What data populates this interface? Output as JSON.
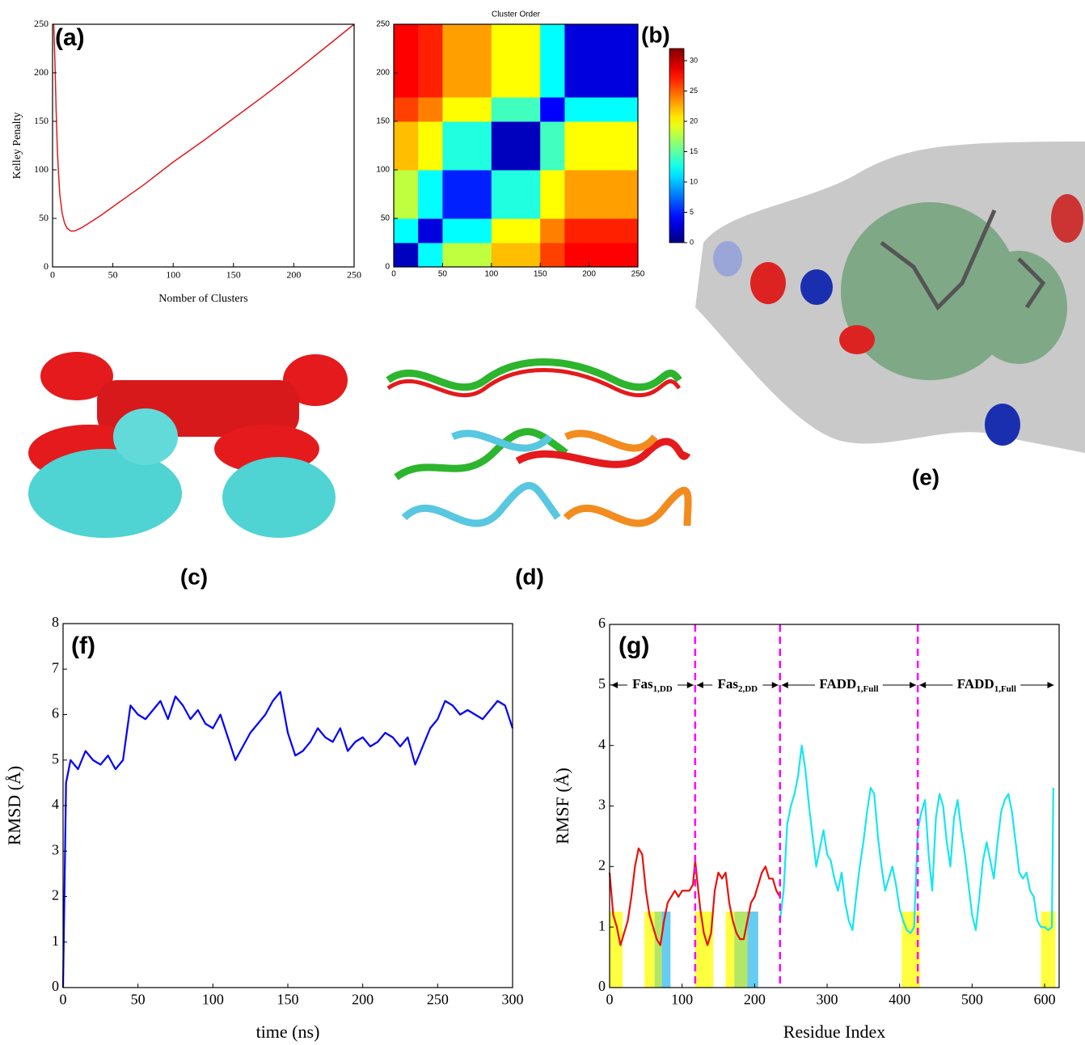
{
  "chart_data": [
    {
      "type": "line",
      "annotation": "(a)",
      "x_label": "Nomber of Clusters",
      "y_label": "Kelley Penalty",
      "x": [
        1,
        2,
        3,
        4,
        5,
        6,
        8,
        10,
        12,
        15,
        18,
        20,
        25,
        30,
        40,
        50,
        75,
        100,
        125,
        150,
        175,
        200,
        225,
        250
      ],
      "series": [
        {
          "color": "#e0191c",
          "values": [
            250,
            210,
            160,
            120,
            95,
            75,
            55,
            45,
            40,
            37,
            37,
            38,
            41,
            45,
            53,
            62,
            84,
            108,
            130,
            153,
            176,
            200,
            225,
            250
          ]
        }
      ],
      "xlim": [
        0,
        250
      ],
      "ylim": [
        0,
        250
      ],
      "xticks": [
        0,
        50,
        100,
        150,
        200,
        250
      ],
      "yticks": [
        0,
        50,
        100,
        150,
        200,
        250
      ]
    },
    {
      "type": "heatmap",
      "title": "Cluster Order",
      "annotation": "(b)",
      "colormap": "jet",
      "xbins": [
        0,
        25,
        50,
        75,
        100,
        125,
        150,
        175,
        200,
        225,
        250
      ],
      "ybins": [
        0,
        25,
        50,
        75,
        100,
        125,
        150,
        175,
        200,
        225,
        250
      ],
      "values": [
        [
          2,
          12,
          18,
          18,
          22,
          22,
          26,
          28,
          28,
          28
        ],
        [
          12,
          3,
          12,
          12,
          20,
          20,
          24,
          27,
          27,
          27
        ],
        [
          18,
          12,
          5,
          5,
          13,
          13,
          20,
          23,
          23,
          23
        ],
        [
          18,
          12,
          5,
          5,
          13,
          13,
          20,
          23,
          23,
          23
        ],
        [
          22,
          20,
          13,
          13,
          2,
          2,
          14,
          20,
          20,
          20
        ],
        [
          22,
          20,
          13,
          13,
          2,
          2,
          14,
          20,
          20,
          20
        ],
        [
          26,
          24,
          20,
          20,
          14,
          14,
          4,
          12,
          12,
          12
        ],
        [
          28,
          27,
          23,
          23,
          20,
          20,
          12,
          3,
          3,
          3
        ],
        [
          28,
          27,
          23,
          23,
          20,
          20,
          12,
          3,
          3,
          3
        ],
        [
          28,
          27,
          23,
          23,
          20,
          20,
          12,
          3,
          3,
          3
        ]
      ],
      "zlim": [
        0,
        32
      ],
      "colorbar_ticks": [
        0,
        5,
        10,
        15,
        20,
        25,
        30
      ],
      "xlim": [
        0,
        250
      ],
      "ylim": [
        0,
        250
      ],
      "xticks": [
        0,
        50,
        100,
        150,
        200,
        250
      ],
      "yticks": [
        0,
        50,
        100,
        150,
        200,
        250
      ]
    },
    {
      "type": "line",
      "annotation": "(f)",
      "x_label": "time (ns)",
      "y_label": "RMSD (Å)",
      "x": [
        0,
        2,
        5,
        10,
        15,
        20,
        25,
        30,
        35,
        40,
        45,
        50,
        55,
        60,
        65,
        70,
        75,
        80,
        85,
        90,
        95,
        100,
        105,
        110,
        115,
        120,
        125,
        130,
        135,
        140,
        145,
        150,
        155,
        160,
        165,
        170,
        175,
        180,
        185,
        190,
        195,
        200,
        205,
        210,
        215,
        220,
        225,
        230,
        235,
        240,
        245,
        250,
        255,
        260,
        265,
        270,
        275,
        280,
        285,
        290,
        295,
        300
      ],
      "series": [
        {
          "color": "#0000ff",
          "values": [
            0,
            4.5,
            5.0,
            4.8,
            5.2,
            5.0,
            4.9,
            5.1,
            4.8,
            5.0,
            6.2,
            6.0,
            5.9,
            6.1,
            6.3,
            5.9,
            6.4,
            6.2,
            5.9,
            6.1,
            5.8,
            5.7,
            6.0,
            5.5,
            5.0,
            5.3,
            5.6,
            5.8,
            6.0,
            6.3,
            6.5,
            5.6,
            5.1,
            5.2,
            5.4,
            5.7,
            5.5,
            5.4,
            5.7,
            5.2,
            5.4,
            5.5,
            5.3,
            5.4,
            5.6,
            5.5,
            5.3,
            5.5,
            4.9,
            5.3,
            5.7,
            5.9,
            6.3,
            6.2,
            6.0,
            6.1,
            6.0,
            5.9,
            6.1,
            6.3,
            6.2,
            5.7
          ]
        }
      ],
      "xlim": [
        0,
        300
      ],
      "ylim": [
        0,
        8
      ],
      "xticks": [
        0,
        50,
        100,
        150,
        200,
        250,
        300
      ],
      "yticks": [
        0,
        1,
        2,
        3,
        4,
        5,
        6,
        7,
        8
      ]
    },
    {
      "type": "line",
      "annotation": "(g)",
      "x_label": "Residue Index",
      "y_label": "RMSF (Å)",
      "series": [
        {
          "color": "#e8120c",
          "x": [
            0,
            5,
            10,
            15,
            20,
            25,
            30,
            35,
            40,
            45,
            50,
            55,
            60,
            65,
            70,
            75,
            80,
            85,
            90,
            95,
            100,
            105,
            110,
            115,
            118,
            125,
            130,
            135,
            140,
            145,
            150,
            155,
            160,
            165,
            170,
            175,
            180,
            185,
            190,
            195,
            200,
            205,
            210,
            215,
            220,
            225,
            230,
            235
          ],
          "values": [
            1.9,
            1.2,
            1.0,
            0.7,
            0.9,
            1.1,
            1.5,
            2.0,
            2.3,
            2.2,
            1.6,
            1.2,
            1.0,
            0.8,
            0.7,
            1.1,
            1.4,
            1.5,
            1.6,
            1.5,
            1.6,
            1.6,
            1.6,
            1.7,
            2.1,
            1.3,
            0.9,
            0.7,
            0.9,
            1.6,
            1.9,
            1.8,
            1.9,
            1.4,
            1.1,
            0.9,
            0.8,
            0.8,
            1.1,
            1.4,
            1.5,
            1.7,
            1.9,
            2.0,
            1.8,
            1.8,
            1.6,
            1.5
          ]
        },
        {
          "color": "#16e6ee",
          "x": [
            235,
            240,
            245,
            250,
            255,
            260,
            265,
            270,
            275,
            280,
            285,
            290,
            295,
            300,
            305,
            310,
            315,
            320,
            325,
            330,
            335,
            340,
            345,
            350,
            355,
            360,
            365,
            370,
            375,
            380,
            385,
            390,
            395,
            400,
            405,
            410,
            415,
            420,
            425,
            430,
            435,
            440,
            445,
            450,
            455,
            460,
            465,
            470,
            475,
            480,
            485,
            490,
            495,
            500,
            505,
            510,
            515,
            520,
            525,
            530,
            535,
            540,
            545,
            550,
            555,
            560,
            565,
            570,
            575,
            580,
            585,
            590,
            595,
            600,
            605,
            610,
            612
          ],
          "values": [
            1.1,
            1.6,
            2.7,
            3.0,
            3.2,
            3.5,
            4.0,
            3.6,
            3.0,
            2.5,
            2.0,
            2.3,
            2.6,
            2.2,
            2.1,
            1.8,
            1.6,
            1.9,
            1.4,
            1.1,
            0.95,
            1.5,
            2.0,
            2.4,
            2.9,
            3.3,
            3.2,
            2.5,
            2.0,
            1.6,
            1.8,
            2.0,
            1.7,
            1.3,
            1.1,
            0.95,
            0.9,
            1.0,
            2.6,
            2.9,
            3.1,
            2.2,
            1.6,
            2.8,
            3.2,
            3.0,
            2.4,
            2.0,
            2.8,
            3.1,
            2.6,
            2.2,
            1.7,
            1.2,
            0.95,
            1.5,
            2.1,
            2.4,
            2.1,
            1.8,
            2.4,
            2.9,
            3.1,
            3.2,
            2.9,
            2.4,
            1.9,
            1.8,
            1.9,
            1.6,
            1.5,
            1.1,
            1.0,
            1.0,
            0.95,
            1.0,
            3.3
          ]
        }
      ],
      "dividers": {
        "values": [
          118,
          235,
          425
        ],
        "color": "#ff00ff"
      },
      "regions": [
        {
          "from": 0,
          "to": 118,
          "label": "Fas",
          "sub": "1,DD"
        },
        {
          "from": 118,
          "to": 235,
          "label": "Fas",
          "sub": "2,DD"
        },
        {
          "from": 235,
          "to": 425,
          "label": "FADD",
          "sub": "1,Full"
        },
        {
          "from": 425,
          "to": 615,
          "label": "FADD",
          "sub": "1,Full"
        }
      ],
      "highlights": [
        {
          "x0": 0,
          "x1": 18,
          "color": "#ffff00"
        },
        {
          "x0": 48,
          "x1": 62,
          "color": "#ffff00"
        },
        {
          "x0": 62,
          "x1": 72,
          "color": "#99dd33"
        },
        {
          "x0": 72,
          "x1": 84,
          "color": "#33bbee"
        },
        {
          "x0": 118,
          "x1": 143,
          "color": "#ffff00"
        },
        {
          "x0": 160,
          "x1": 172,
          "color": "#ffff00"
        },
        {
          "x0": 172,
          "x1": 190,
          "color": "#99dd33"
        },
        {
          "x0": 190,
          "x1": 205,
          "color": "#33bbee"
        },
        {
          "x0": 403,
          "x1": 428,
          "color": "#ffff00"
        },
        {
          "x0": 595,
          "x1": 615,
          "color": "#ffff00"
        }
      ],
      "xlim": [
        0,
        620
      ],
      "ylim": [
        0,
        6
      ],
      "xticks": [
        0,
        100,
        200,
        300,
        400,
        500,
        600
      ],
      "yticks": [
        0,
        1,
        2,
        3,
        4,
        5,
        6
      ]
    }
  ],
  "panels": [
    {
      "label": "(c)"
    },
    {
      "label": "(d)"
    },
    {
      "label": "(e)"
    }
  ]
}
